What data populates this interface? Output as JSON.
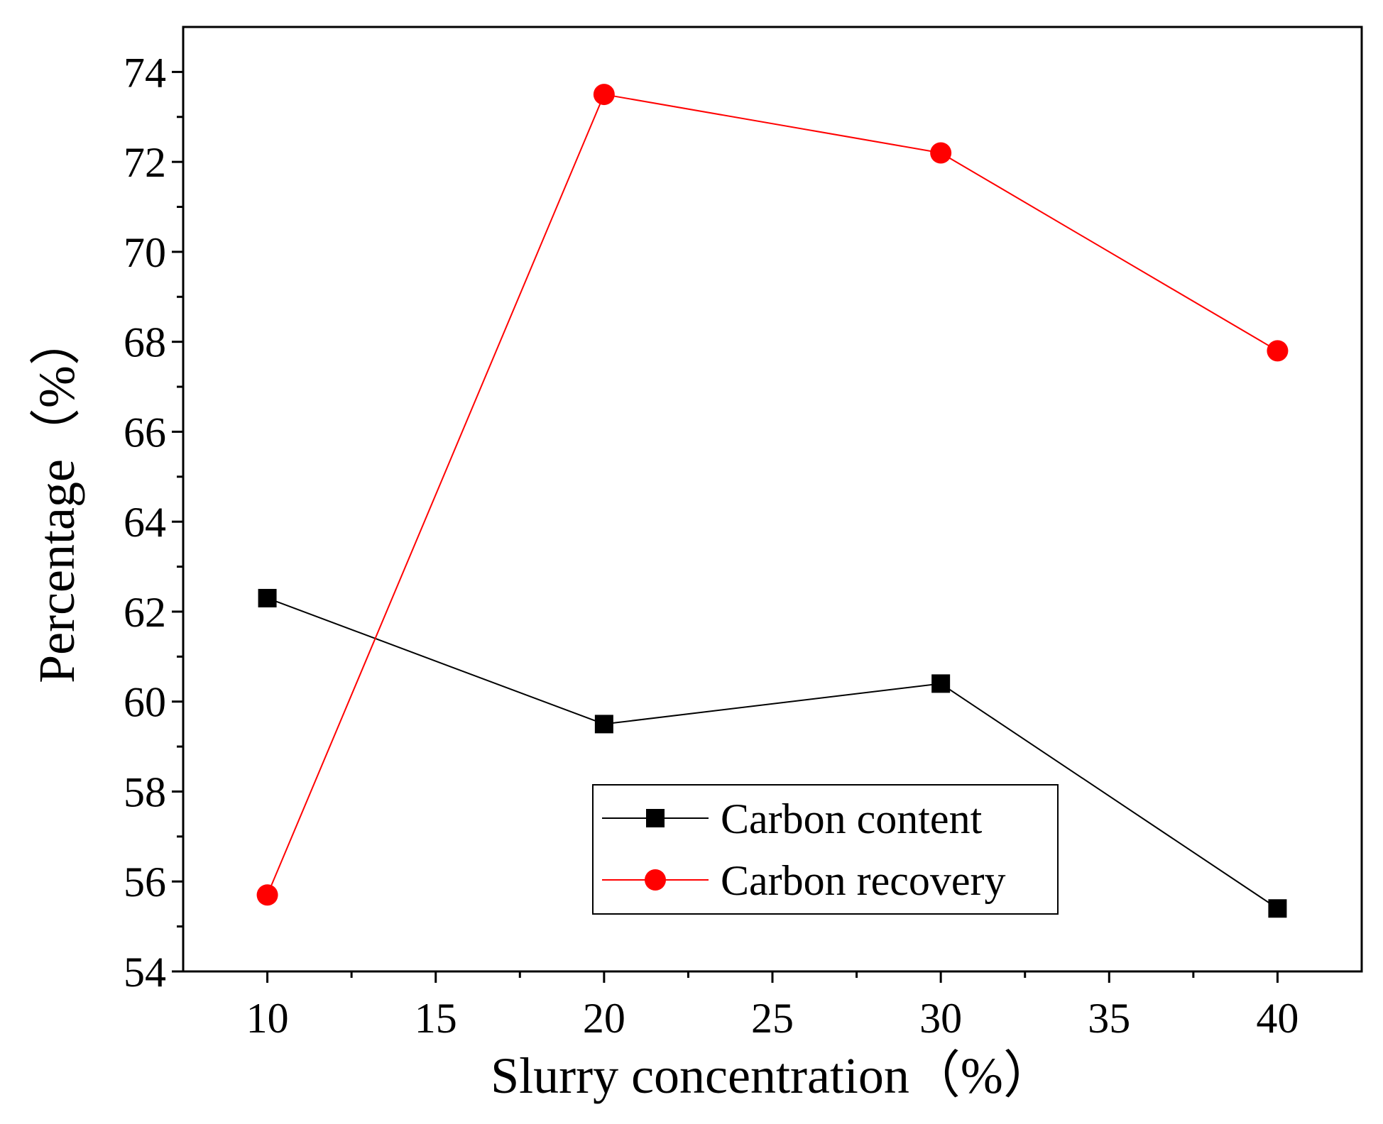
{
  "chart_data": {
    "type": "line",
    "title": "",
    "xlabel": "Slurry concentration（%）",
    "ylabel": "Percentage（%）",
    "xlim": [
      7.5,
      42.5
    ],
    "ylim": [
      54,
      75
    ],
    "x_ticks": [
      10,
      15,
      20,
      25,
      30,
      35,
      40
    ],
    "x_minor_ticks": [
      12.5,
      17.5,
      22.5,
      27.5,
      32.5,
      37.5
    ],
    "y_ticks": [
      54,
      56,
      58,
      60,
      62,
      64,
      66,
      68,
      70,
      72,
      74
    ],
    "y_minor_ticks": [
      55,
      57,
      59,
      61,
      63,
      65,
      67,
      69,
      71,
      73
    ],
    "legend_position": "lower-right",
    "series": [
      {
        "name": "Carbon content",
        "color": "#000000",
        "marker": "square",
        "x": [
          10,
          20,
          30,
          40
        ],
        "values": [
          62.3,
          59.5,
          60.4,
          55.4
        ]
      },
      {
        "name": "Carbon recovery",
        "color": "#ff0000",
        "marker": "circle",
        "x": [
          10,
          20,
          30,
          40
        ],
        "values": [
          55.7,
          73.5,
          72.2,
          67.8
        ]
      }
    ]
  }
}
